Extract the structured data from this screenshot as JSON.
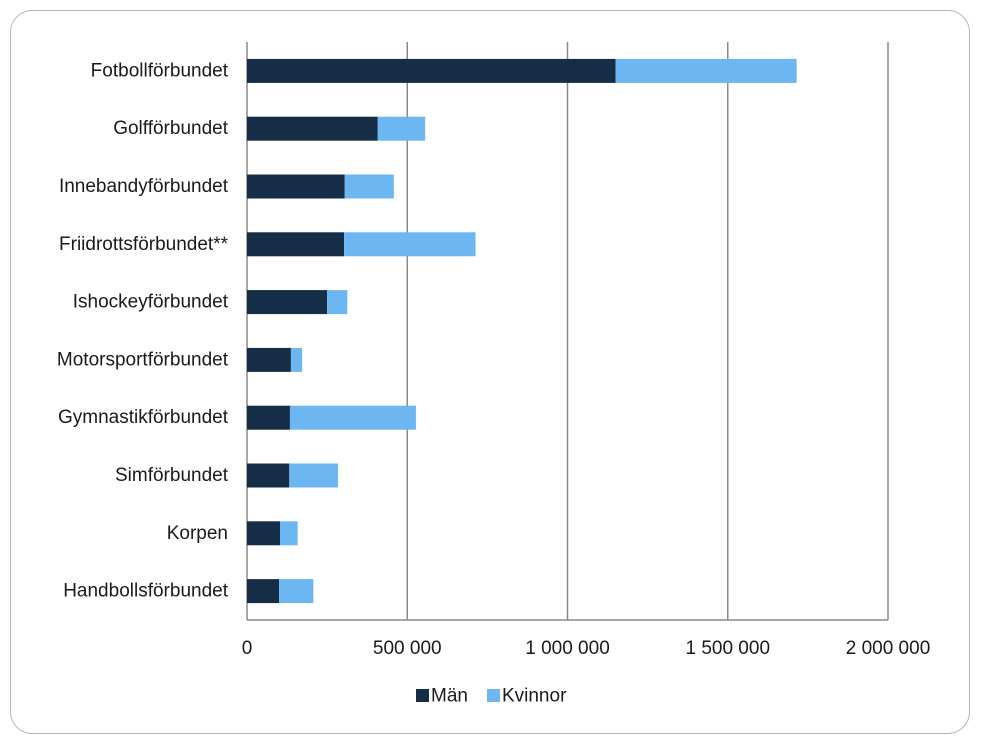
{
  "chart_data": {
    "type": "bar",
    "orientation": "horizontal",
    "stacked": true,
    "categories": [
      "Fotbollförbundet",
      "Golfförbundet",
      "Innebandyförbundet",
      "Friidrottsförbundet**",
      "Ishockeyförbundet",
      "Motorsportförbundet",
      "Gymnastikförbundet",
      "Simförbundet",
      "Korpen",
      "Handbollsförbundet"
    ],
    "series": [
      {
        "name": "Män",
        "color": "#152d47",
        "values": [
          1150000,
          408000,
          305000,
          303000,
          250000,
          137000,
          134000,
          132000,
          103000,
          100000
        ]
      },
      {
        "name": "Kvinnor",
        "color": "#6cb6f2",
        "values": [
          565000,
          148000,
          153000,
          410000,
          63000,
          35000,
          393000,
          152000,
          55000,
          107000
        ]
      }
    ],
    "xlim": [
      0,
      2000000
    ],
    "xticks": [
      0,
      500000,
      1000000,
      1500000,
      2000000
    ],
    "xtick_labels": [
      "0",
      "500 000",
      "1 000 000",
      "1 500 000",
      "2 000 000"
    ],
    "grid": "vertical",
    "legend": "bottom-center",
    "title": "",
    "xlabel": "",
    "ylabel": ""
  }
}
